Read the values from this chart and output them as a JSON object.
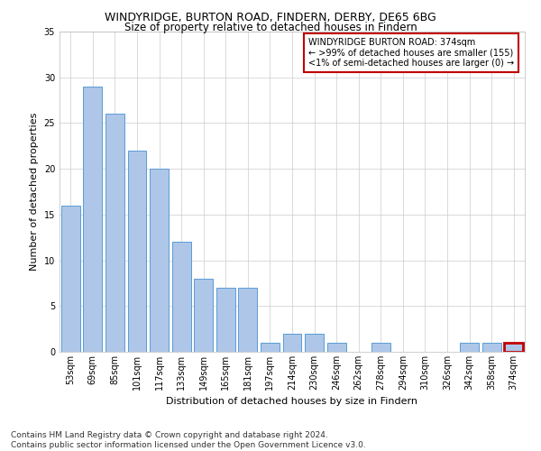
{
  "title": "WINDYRIDGE, BURTON ROAD, FINDERN, DERBY, DE65 6BG",
  "subtitle": "Size of property relative to detached houses in Findern",
  "xlabel": "Distribution of detached houses by size in Findern",
  "ylabel": "Number of detached properties",
  "categories": [
    "53sqm",
    "69sqm",
    "85sqm",
    "101sqm",
    "117sqm",
    "133sqm",
    "149sqm",
    "165sqm",
    "181sqm",
    "197sqm",
    "214sqm",
    "230sqm",
    "246sqm",
    "262sqm",
    "278sqm",
    "294sqm",
    "310sqm",
    "326sqm",
    "342sqm",
    "358sqm",
    "374sqm"
  ],
  "values": [
    16,
    29,
    26,
    22,
    20,
    12,
    8,
    7,
    7,
    1,
    2,
    2,
    1,
    0,
    1,
    0,
    0,
    0,
    1,
    1,
    1
  ],
  "bar_color": "#aec6e8",
  "bar_edge_color": "#5b9bd5",
  "highlight_index": 20,
  "highlight_bar_edge_color": "#c00000",
  "ylim": [
    0,
    35
  ],
  "yticks": [
    0,
    5,
    10,
    15,
    20,
    25,
    30,
    35
  ],
  "annotation_box_text_line1": "WINDYRIDGE BURTON ROAD: 374sqm",
  "annotation_box_text_line2": "← >99% of detached houses are smaller (155)",
  "annotation_box_text_line3": "<1% of semi-detached houses are larger (0) →",
  "annotation_box_edge_color": "#c00000",
  "annotation_box_bg": "#ffffff",
  "footer_line1": "Contains HM Land Registry data © Crown copyright and database right 2024.",
  "footer_line2": "Contains public sector information licensed under the Open Government Licence v3.0.",
  "grid_color": "#cccccc",
  "background_color": "#ffffff",
  "title_fontsize": 9,
  "subtitle_fontsize": 8.5,
  "xlabel_fontsize": 8,
  "ylabel_fontsize": 8,
  "tick_fontsize": 7,
  "annotation_fontsize": 7,
  "footer_fontsize": 6.5
}
